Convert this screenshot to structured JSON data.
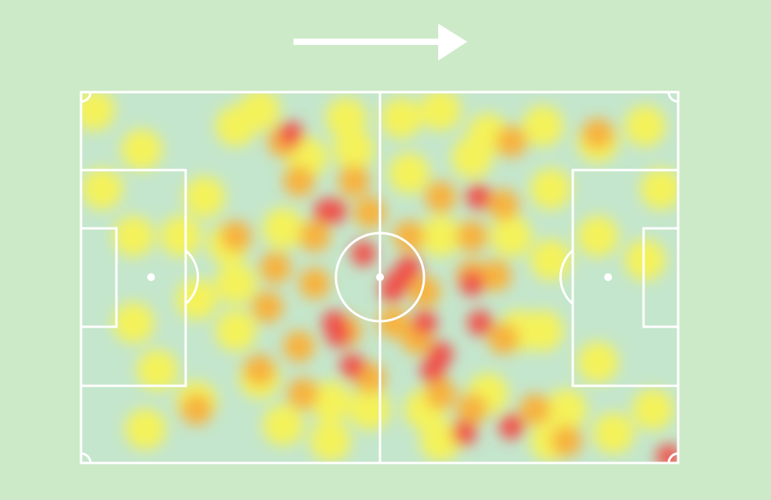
{
  "direction_of_play": "left-to-right",
  "colors": {
    "background": "#cdeac8",
    "pitch": "#c4e6cc",
    "lines": "#ffffff",
    "low": "#f4f25a",
    "mid": "#f7b23c",
    "high": "#f0504a"
  }
}
